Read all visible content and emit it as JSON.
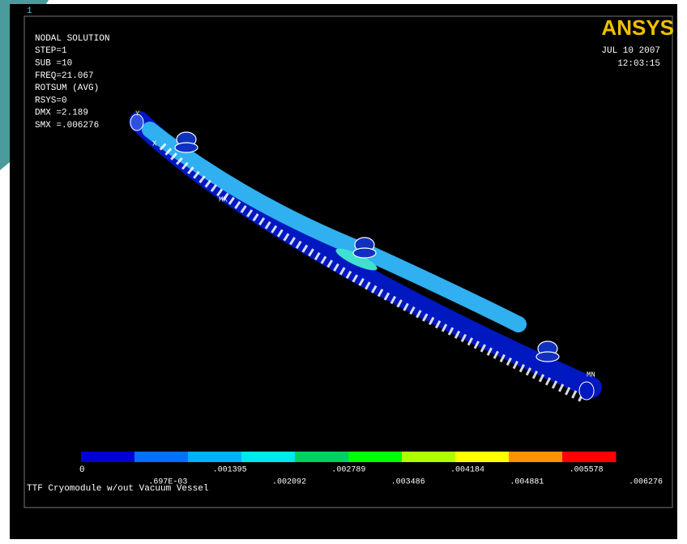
{
  "window": {
    "number": "1",
    "logo": "ANSYS",
    "date": "JUL 10 2007",
    "time": "12:03:15"
  },
  "info": [
    "NODAL SOLUTION",
    "STEP=1",
    "SUB =10",
    "FREQ=21.067",
    "ROTSUM    (AVG)",
    "RSYS=0",
    "DMX =2.189",
    "SMX =.006276"
  ],
  "model": {
    "max_label": "MX",
    "min_label": "MN",
    "axis_x": "X",
    "axis_y": "Y"
  },
  "legend": {
    "colors": [
      "#0000d0",
      "#0070ff",
      "#00b0ff",
      "#00e8e8",
      "#00d060",
      "#00ff00",
      "#b0ff00",
      "#ffff00",
      "#ff9000",
      "#ff0000"
    ],
    "labels": [
      "0",
      ".697E-03",
      ".001395",
      ".002092",
      ".002789",
      ".003486",
      ".004184",
      ".004881",
      ".005578",
      ".006276"
    ]
  },
  "caption": "TTF Cryomodule w/out Vacuum Vessel"
}
